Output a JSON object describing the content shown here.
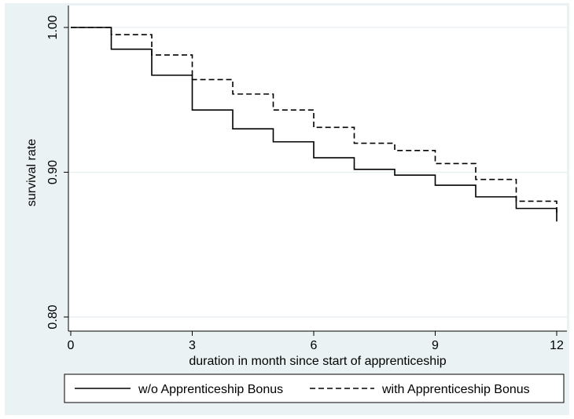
{
  "chart_data": {
    "type": "line",
    "title": "",
    "xlabel": "duration in month since start of apprenticeship",
    "ylabel": "survival rate",
    "xlim": [
      0,
      12
    ],
    "ylim": [
      0.8,
      1.0
    ],
    "xticks": [
      0,
      3,
      6,
      9,
      12
    ],
    "xtick_labels": [
      "0",
      "3",
      "6",
      "9",
      "12"
    ],
    "yticks": [
      0.8,
      0.9,
      1.0
    ],
    "ytick_labels": [
      "0.80",
      "0.90",
      "1.00"
    ],
    "grid": "horizontal",
    "legend_position": "bottom",
    "series": [
      {
        "name": "w/o Apprenticeship Bonus",
        "style": "solid",
        "color": "#000000",
        "step": true,
        "x": [
          0,
          1,
          2,
          3,
          4,
          5,
          6,
          7,
          8,
          9,
          10,
          11,
          12
        ],
        "y": [
          1.0,
          0.985,
          0.967,
          0.943,
          0.93,
          0.921,
          0.91,
          0.902,
          0.898,
          0.891,
          0.883,
          0.875,
          0.866
        ]
      },
      {
        "name": "with Apprenticeship Bonus",
        "style": "dashed",
        "color": "#000000",
        "step": true,
        "x": [
          0,
          1,
          2,
          3,
          4,
          5,
          6,
          7,
          8,
          9,
          10,
          11,
          12
        ],
        "y": [
          1.0,
          0.995,
          0.981,
          0.964,
          0.954,
          0.943,
          0.931,
          0.92,
          0.915,
          0.906,
          0.895,
          0.88,
          0.87
        ]
      }
    ]
  }
}
